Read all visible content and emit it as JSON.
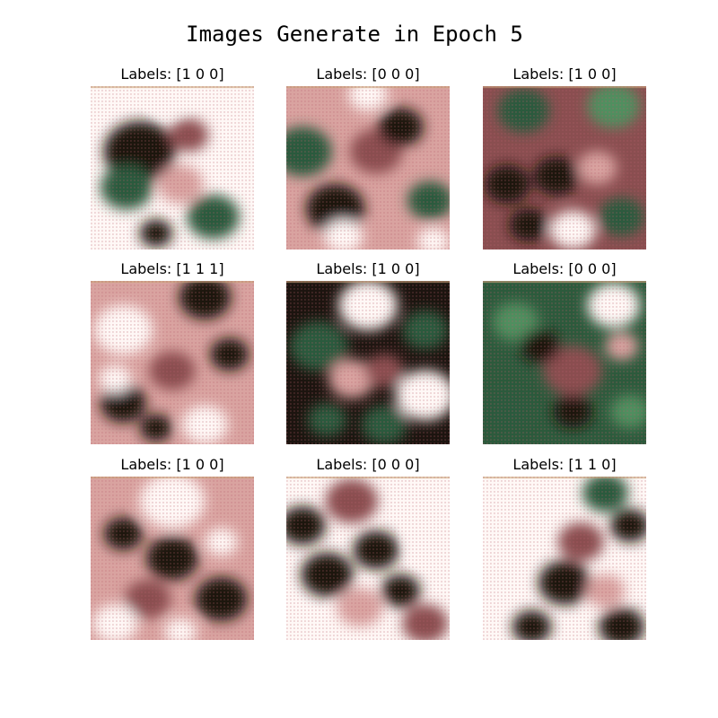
{
  "figure": {
    "title": "Images Generate in Epoch 5"
  },
  "panels": [
    {
      "label": "Labels: [1 0 0]"
    },
    {
      "label": "Labels: [0 0 0]"
    },
    {
      "label": "Labels: [1 0 0]"
    },
    {
      "label": "Labels: [1 1 1]"
    },
    {
      "label": "Labels: [1 0 0]"
    },
    {
      "label": "Labels: [0 0 0]"
    },
    {
      "label": "Labels: [1 0 0]"
    },
    {
      "label": "Labels: [0 0 0]"
    },
    {
      "label": "Labels: [1 1 0]"
    }
  ],
  "palette": {
    "white": "#fff8f6",
    "pink": "#d9a3a0",
    "mauve": "#8a4e50",
    "dark": "#1c140f",
    "green": "#2c5a3c",
    "green_light": "#4f8f5f",
    "tan": "#c9a77a"
  }
}
